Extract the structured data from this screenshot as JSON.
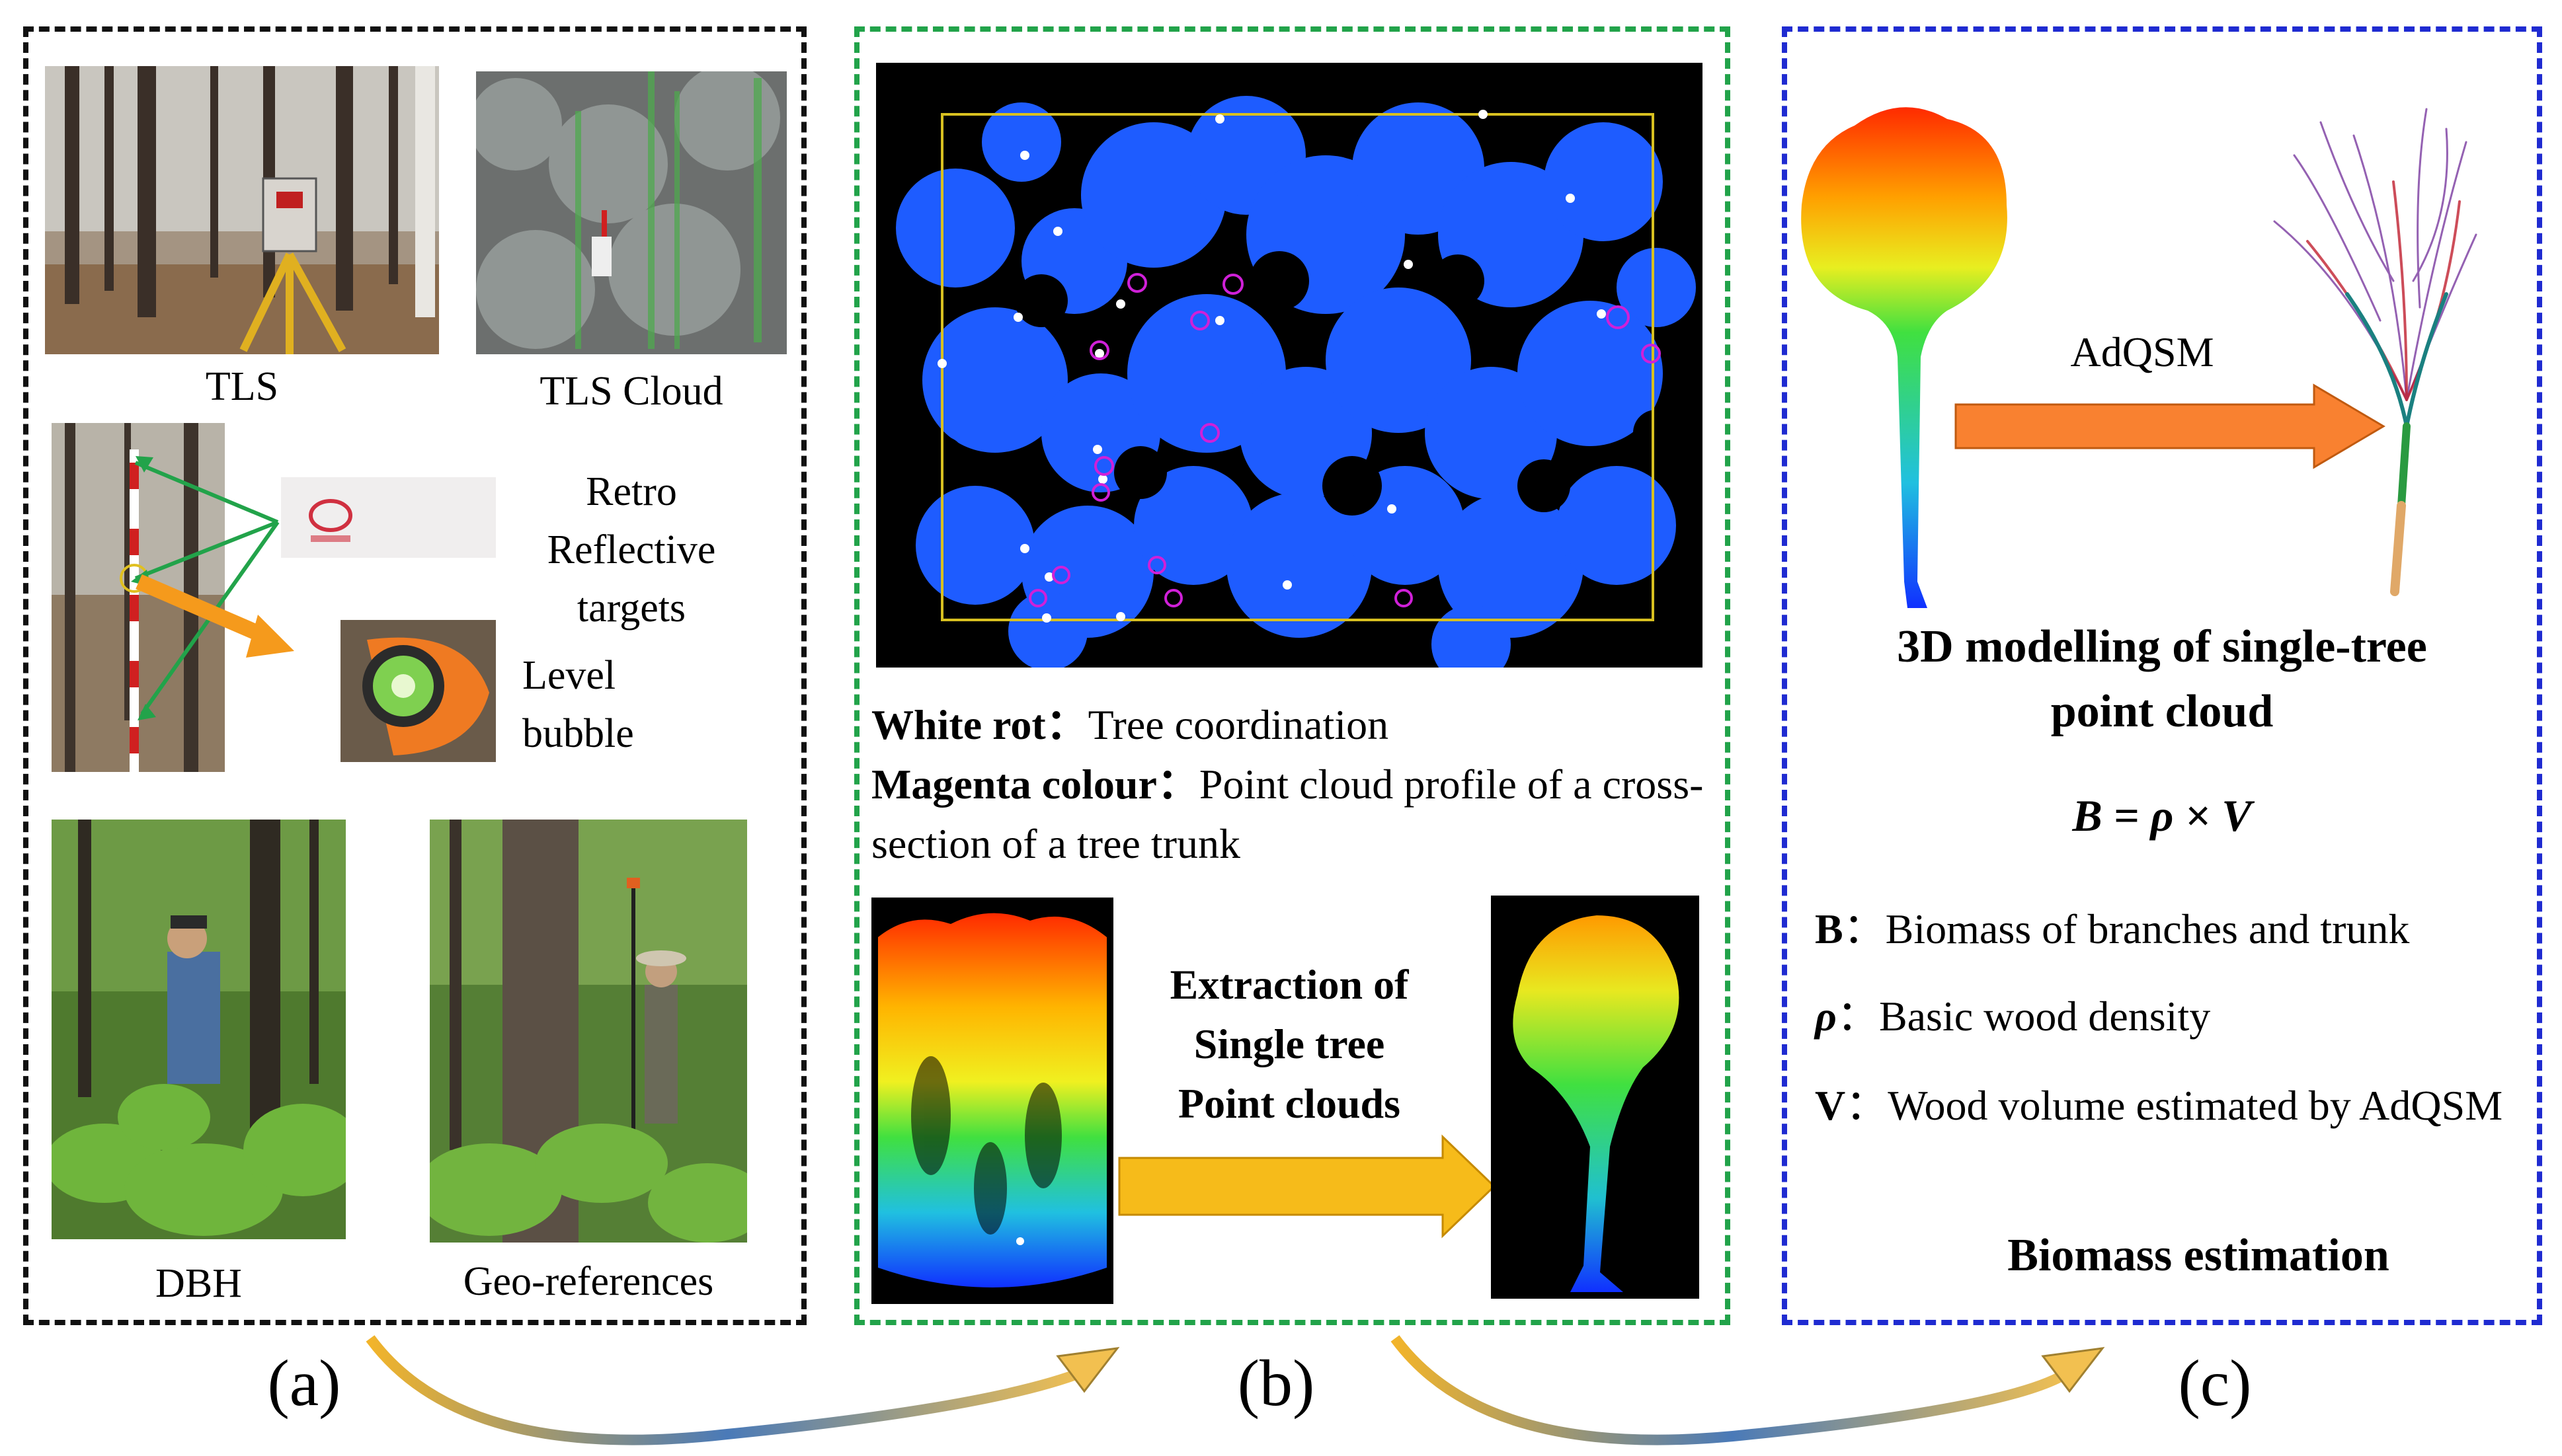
{
  "panel_a": {
    "tls_caption": "TLS",
    "tls_cloud_caption": "TLS Cloud",
    "retro_lines": [
      "Retro",
      "Reflective",
      "targets"
    ],
    "level_lines": [
      "Level",
      "bubble"
    ],
    "dbh_caption": "DBH",
    "geo_caption": "Geo-references",
    "label": "(a)"
  },
  "panel_b": {
    "legend": [
      {
        "term": "White rot：",
        "text": "Tree coordination"
      },
      {
        "term": "Magenta colour：",
        "text": "Point cloud profile of a cross-section of a tree trunk"
      }
    ],
    "extraction_lines": [
      "Extraction of",
      "Single tree",
      "Point clouds"
    ],
    "label": "(b)"
  },
  "panel_c": {
    "arrow_label": "AdQSM",
    "title_lines": [
      "3D modelling of single-tree",
      "point cloud"
    ],
    "formula": "B = ρ × V",
    "defs": [
      {
        "sym": "B",
        "text": "：Biomass of branches and trunk"
      },
      {
        "sym": "ρ",
        "text": "：Basic wood density"
      },
      {
        "sym": "V",
        "text": "：Wood volume estimated by AdQSM"
      }
    ],
    "footer": "Biomass estimation",
    "label": "(c)"
  },
  "colors": {
    "panel_a_border": "#111111",
    "panel_b_border": "#22a34a",
    "panel_c_border": "#1f2bd1",
    "point_cloud_blue": "#1e5cff",
    "arrow_orange": "#f98130",
    "arrow_yellow": "#f6bb1a",
    "circle_magenta": "#d020d8"
  }
}
